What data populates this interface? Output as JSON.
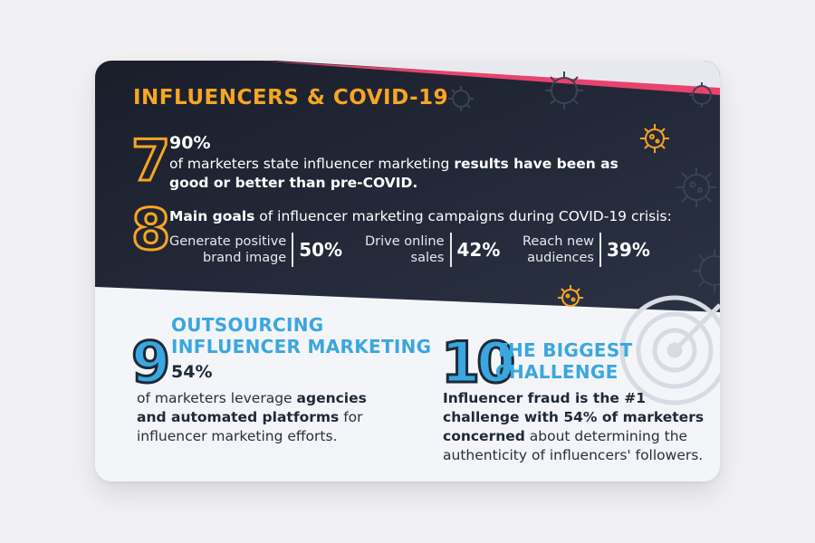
{
  "heading": "INFLUENCERS & COVID-19",
  "colors": {
    "orange": "#f6a623",
    "navy": "#1f2433",
    "blue": "#3aa7e0",
    "pink": "#e8436f"
  },
  "stat7": {
    "number": "7",
    "percent": "90%",
    "text_plain": "of marketers state influencer marketing ",
    "text_bold": "results have been as good or better than pre-COVID."
  },
  "stat8": {
    "number": "8",
    "intro_bold": "Main goals",
    "intro_rest": " of influencer marketing campaigns during COVID-19 crisis:",
    "goals": [
      {
        "label_line1": "Generate positive",
        "label_line2": "brand image",
        "percent": "50%"
      },
      {
        "label_line1": "Drive online",
        "label_line2": "sales",
        "percent": "42%"
      },
      {
        "label_line1": "Reach new",
        "label_line2": "audiences",
        "percent": "39%"
      }
    ]
  },
  "stat9": {
    "number": "9",
    "title_line1": "OUTSOURCING",
    "title_line2": "INFLUENCER MARKETING",
    "percent": "54%",
    "text_plain1": "of marketers leverage ",
    "text_bold": "agencies and automated platforms",
    "text_plain2": " for influencer marketing efforts."
  },
  "stat10": {
    "number": "10",
    "title_line1": "THE BIGGEST",
    "title_line2": "CHALLENGE",
    "text_bold": "Influencer fraud is the #1 challenge with 54% of marketers concerned",
    "text_plain": " about determining the authenticity of influencers' followers."
  },
  "icons": [
    "virus-icon",
    "target-icon"
  ]
}
